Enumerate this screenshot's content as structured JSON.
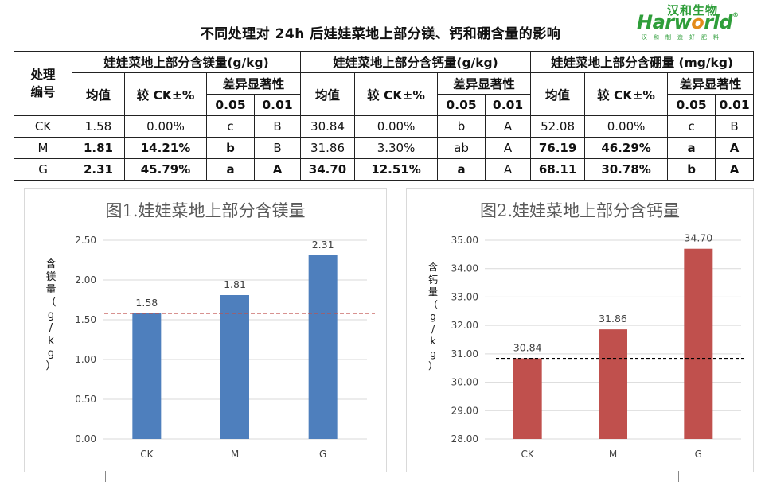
{
  "header": {
    "title": "不同处理对 24h 后娃娃菜地上部分镁、钙和硼含量的影响",
    "logo": {
      "cn": "汉和生物",
      "en_a": "Har",
      "en_o1": "w",
      "en_b": "o",
      "en_c": "rld",
      "tm": "®",
      "sub": "汉和制造好肥料"
    }
  },
  "table": {
    "col_treatment": "处理编号",
    "group_mg": "娃娃菜地上部分含镁量(g/kg)",
    "group_ca": "娃娃菜地上部分含钙量(g/kg)",
    "group_b": "娃娃菜地上部分含硼量 (mg/kg)",
    "mean": "均值",
    "vs_ck": "较 CK±%",
    "sig": "差异显著性",
    "p005": "0.05",
    "p001": "0.01",
    "rows": [
      {
        "id": "CK",
        "mg": [
          "1.58",
          "0.00%",
          "c",
          "B"
        ],
        "ca": [
          "30.84",
          "0.00%",
          "b",
          "A"
        ],
        "b": [
          "52.08",
          "0.00%",
          "c",
          "B"
        ]
      },
      {
        "id": "M",
        "mg": [
          "1.81",
          "14.21%",
          "b",
          "B"
        ],
        "ca": [
          "31.86",
          "3.30%",
          "ab",
          "A"
        ],
        "b": [
          "76.19",
          "46.29%",
          "a",
          "A"
        ]
      },
      {
        "id": "G",
        "mg": [
          "2.31",
          "45.79%",
          "a",
          "A"
        ],
        "ca": [
          "34.70",
          "12.51%",
          "a",
          "A"
        ],
        "b": [
          "68.11",
          "30.78%",
          "b",
          "A"
        ]
      }
    ]
  },
  "colors": {
    "mg_bar": "#4e7fbd",
    "ca_bar": "#c0504d",
    "mg_ref_line": "#c0504d",
    "ca_ref_line": "#000000"
  },
  "chart_data": [
    {
      "type": "bar",
      "title": "图1.娃娃菜地上部分含镁量",
      "ylabel": "含镁量（g/kg）",
      "categories": [
        "CK",
        "M",
        "G"
      ],
      "values": [
        1.58,
        1.81,
        2.31
      ],
      "data_labels": [
        "1.58",
        "1.81",
        "2.31"
      ],
      "ylim": [
        0,
        2.5
      ],
      "yticks": [
        "0.00",
        "0.50",
        "1.00",
        "1.50",
        "2.00",
        "2.50"
      ],
      "reference_line": 1.58,
      "grid": true
    },
    {
      "type": "bar",
      "title": "图2.娃娃菜地上部分含钙量",
      "ylabel": "含钙量（g/kg）",
      "categories": [
        "CK",
        "M",
        "G"
      ],
      "values": [
        30.84,
        31.86,
        34.7
      ],
      "data_labels": [
        "30.84",
        "31.86",
        "34.70"
      ],
      "ylim": [
        28,
        35
      ],
      "yticks": [
        "28.00",
        "29.00",
        "30.00",
        "31.00",
        "32.00",
        "33.00",
        "34.00",
        "35.00"
      ],
      "reference_line": 30.84,
      "grid": true
    }
  ]
}
